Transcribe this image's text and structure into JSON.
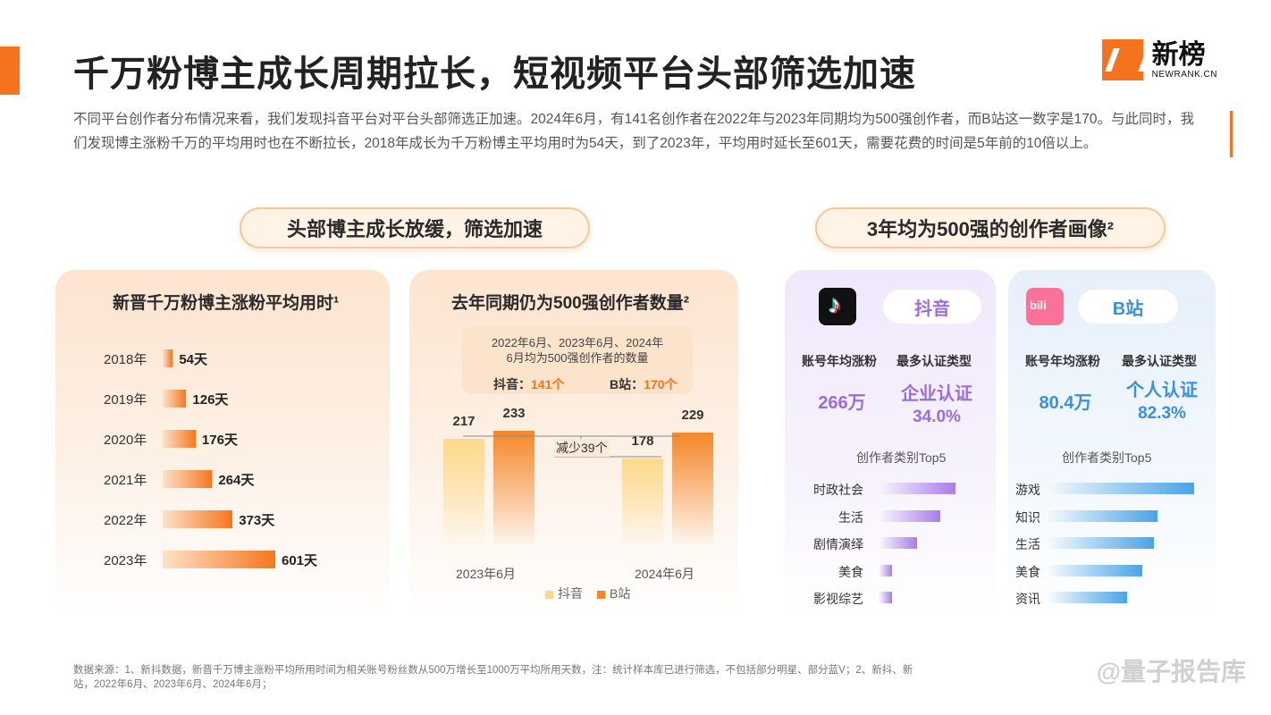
{
  "header": {
    "title": "千万粉博主成长周期拉长，短视频平台头部筛选加速",
    "logo_cn": "新榜",
    "logo_en": "NEWRANK.CN"
  },
  "intro": "不同平台创作者分布情况来看，我们发现抖音平台对平台头部筛选正加速。2024年6月，有141名创作者在2022年与2023年同期均为500强创作者，而B站这一数字是170。与此同时，我们发现博主涨粉千万的平均用时也在不断拉长，2018年成长为千万粉博主平均用时为54天，到了2023年，平均用时延长至601天，需要花费的时间是5年前的10倍以上。",
  "section_left_title": "头部博主成长放缓，筛选加速",
  "section_right_title": "3年均为500强的创作者画像²",
  "chart_data": [
    {
      "type": "bar",
      "orientation": "horizontal",
      "title": "新晋千万粉博主涨粉平均用时¹",
      "categories": [
        "2018年",
        "2019年",
        "2020年",
        "2021年",
        "2022年",
        "2023年"
      ],
      "values": [
        54,
        126,
        176,
        264,
        373,
        601
      ],
      "value_labels": [
        "54天",
        "126天",
        "176天",
        "264天",
        "373天",
        "601天"
      ],
      "unit": "天",
      "color": "#f5761f"
    },
    {
      "type": "bar",
      "title": "去年同期仍为500强创作者数量²",
      "note": "2022年6月、2023年6月、2024年6月均为500强创作者的数量",
      "note_counts": [
        {
          "label": "抖音：",
          "value": "141个"
        },
        {
          "label": "B站：",
          "value": "170个"
        }
      ],
      "categories": [
        "2023年6月",
        "2024年6月"
      ],
      "series": [
        {
          "name": "抖音",
          "values": [
            217,
            178
          ],
          "color": "#fdd98a"
        },
        {
          "name": "B站",
          "values": [
            233,
            229
          ],
          "color": "#f5872a"
        }
      ],
      "annotation": "减少39个",
      "ylim": [
        0,
        260
      ]
    },
    {
      "type": "bar",
      "orientation": "horizontal",
      "platform": "抖音",
      "title": "创作者类别Top5",
      "categories": [
        "时政社会",
        "生活",
        "剧情演绎",
        "美食",
        "影视综艺"
      ],
      "values": [
        100,
        80,
        50,
        18,
        17
      ],
      "color": "#a97de8"
    },
    {
      "type": "bar",
      "orientation": "horizontal",
      "platform": "B站",
      "title": "创作者类别Top5",
      "categories": [
        "游戏",
        "知识",
        "生活",
        "美食",
        "资讯"
      ],
      "values": [
        100,
        75,
        73,
        65,
        55
      ],
      "color": "#4aa3e6"
    }
  ],
  "profiles": {
    "douyin": {
      "name": "抖音",
      "head_growth": "账号年均涨粉",
      "head_type": "最多认证类型",
      "growth": "266万",
      "type": "企业认证",
      "type_pct": "34.0%"
    },
    "bili": {
      "name": "B站",
      "head_growth": "账号年均涨粉",
      "head_type": "最多认证类型",
      "growth": "80.4万",
      "type": "个人认证",
      "type_pct": "82.3%"
    }
  },
  "footnote": "数据来源：1、新抖数据，新晋千万博主涨粉平均所用时间为相关账号粉丝数从500万增长至1000万平均所用天数，注：统计样本库已进行筛选，不包括部分明星、部分蓝V；2、新抖、新站，2022年6月、2023年6月、2024年6月；",
  "watermark": "@量子报告库"
}
